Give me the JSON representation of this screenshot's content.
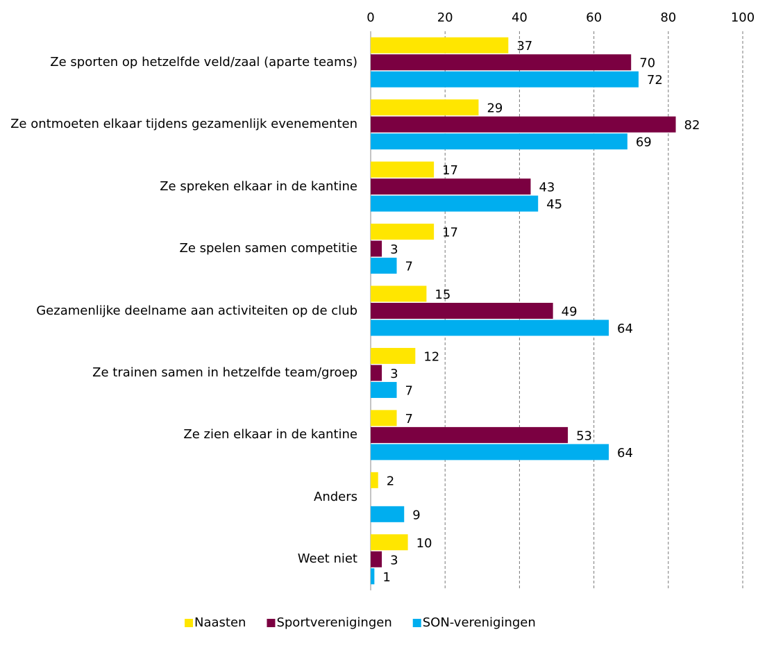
{
  "chart_data": {
    "type": "bar",
    "orientation": "horizontal",
    "categories": [
      "Ze sporten op hetzelfde veld/zaal (aparte teams)",
      "Ze ontmoeten elkaar tijdens gezamenlijk evenementen",
      "Ze spreken elkaar in de kantine",
      "Ze spelen samen competitie",
      "Gezamenlijke deelname aan activiteiten op de club",
      "Ze trainen samen in hetzelfde team/groep",
      "Ze zien elkaar in de kantine",
      "Anders",
      "Weet niet"
    ],
    "series": [
      {
        "name": "Naasten",
        "color": "#FFE600",
        "values": [
          37,
          29,
          17,
          17,
          15,
          12,
          7,
          2,
          10
        ]
      },
      {
        "name": "Sportverenigingen",
        "color": "#7B0041",
        "values": [
          70,
          82,
          43,
          3,
          49,
          3,
          53,
          null,
          3
        ]
      },
      {
        "name": "SON-verenigingen",
        "color": "#00AEEF",
        "values": [
          72,
          69,
          45,
          7,
          64,
          7,
          64,
          9,
          1
        ]
      }
    ],
    "xlim": [
      0,
      100
    ],
    "xticks": [
      0,
      20,
      40,
      60,
      80,
      100
    ],
    "grid": true,
    "legend": "bottom"
  }
}
